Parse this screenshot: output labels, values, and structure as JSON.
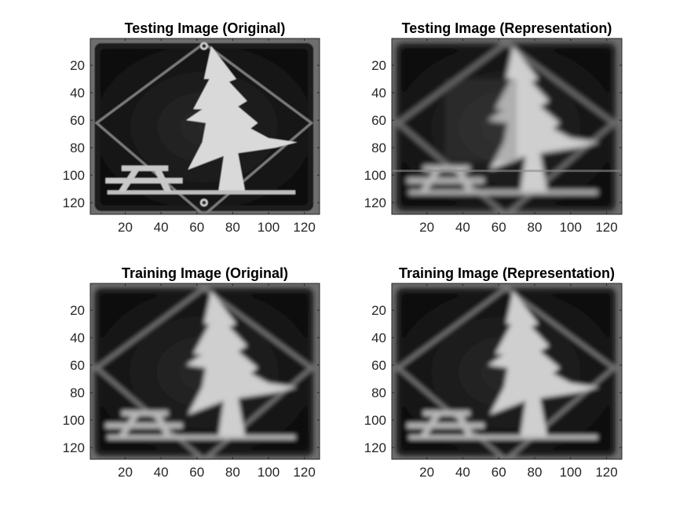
{
  "figure": {
    "background": "#ffffff",
    "text_color": "#262626"
  },
  "chart_data": [
    {
      "type": "image",
      "title": "Testing Image (Original)",
      "colormap": "gray",
      "xlim": [
        0.5,
        128.5
      ],
      "ylim": [
        0.5,
        128.5
      ],
      "y_reversed": true,
      "xticks": [
        20,
        40,
        60,
        80,
        100,
        120
      ],
      "yticks": [
        20,
        40,
        60,
        80,
        100,
        120
      ],
      "variant": "sharp"
    },
    {
      "type": "image",
      "title": "Testing Image (Representation)",
      "colormap": "gray",
      "xlim": [
        0.5,
        128.5
      ],
      "ylim": [
        0.5,
        128.5
      ],
      "y_reversed": true,
      "xticks": [
        20,
        40,
        60,
        80,
        100,
        120
      ],
      "yticks": [
        20,
        40,
        60,
        80,
        100,
        120
      ],
      "variant": "noisy"
    },
    {
      "type": "image",
      "title": "Training Image (Original)",
      "colormap": "gray",
      "xlim": [
        0.5,
        128.5
      ],
      "ylim": [
        0.5,
        128.5
      ],
      "y_reversed": true,
      "xticks": [
        20,
        40,
        60,
        80,
        100,
        120
      ],
      "yticks": [
        20,
        40,
        60,
        80,
        100,
        120
      ],
      "variant": "blurred"
    },
    {
      "type": "image",
      "title": "Training Image (Representation)",
      "colormap": "gray",
      "xlim": [
        0.5,
        128.5
      ],
      "ylim": [
        0.5,
        128.5
      ],
      "y_reversed": true,
      "xticks": [
        20,
        40,
        60,
        80,
        100,
        120
      ],
      "yticks": [
        20,
        40,
        60,
        80,
        100,
        120
      ],
      "variant": "blurred"
    }
  ]
}
